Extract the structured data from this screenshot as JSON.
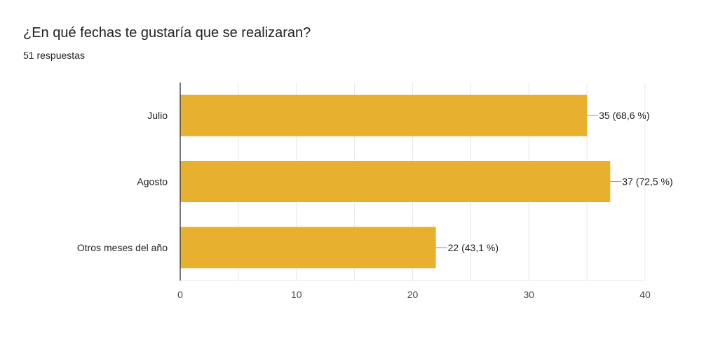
{
  "question": {
    "title": "¿En qué fechas te gustaría que se realizaran?",
    "responses": "51 respuestas"
  },
  "colors": {
    "bar": "#e8b02f",
    "grid": "#e8e8e8",
    "axis": "#333333",
    "text": "#222222"
  },
  "chart_data": {
    "type": "bar",
    "orientation": "horizontal",
    "categories": [
      "Julio",
      "Agosto",
      "Otros meses del año"
    ],
    "values": [
      35,
      37,
      22
    ],
    "data_labels": [
      "35 (68,6 %)",
      "37 (72,5 %)",
      "22 (43,1 %)"
    ],
    "xlim": [
      0,
      40
    ],
    "xticks": [
      0,
      10,
      20,
      30,
      40
    ],
    "grid": true,
    "legend": "none"
  }
}
